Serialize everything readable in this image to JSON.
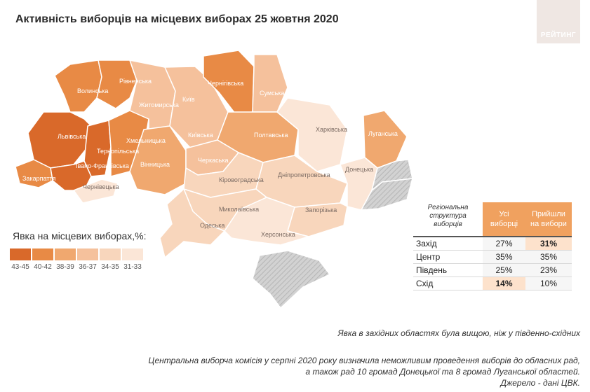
{
  "title": "Активність виборців на місцевих виборах 25 жовтня 2020",
  "logo_text": "РЕЙТИНГ",
  "colors": {
    "43-45": "#d9692a",
    "40-42": "#e88a45",
    "38-39": "#f0a86f",
    "36-37": "#f5c19c",
    "34-35": "#f8d6bc",
    "31-33": "#fbe6d7",
    "occupied": "#c8c8c8"
  },
  "regions": [
    {
      "name": "Волинська",
      "band": "40-42"
    },
    {
      "name": "Рівненська",
      "band": "40-42"
    },
    {
      "name": "Львівська",
      "band": "43-45"
    },
    {
      "name": "Тернопільська",
      "band": "43-45"
    },
    {
      "name": "Хмельницька",
      "band": "40-42"
    },
    {
      "name": "Івано-Франківська",
      "band": "43-45"
    },
    {
      "name": "Закарпаття",
      "band": "40-42"
    },
    {
      "name": "Чернівецька",
      "band": "31-33"
    },
    {
      "name": "Житомирська",
      "band": "36-37"
    },
    {
      "name": "Вінницька",
      "band": "38-39"
    },
    {
      "name": "Київ",
      "band": "36-37"
    },
    {
      "name": "Київська",
      "band": "36-37"
    },
    {
      "name": "Чернігівська",
      "band": "40-42"
    },
    {
      "name": "Сумська",
      "band": "36-37"
    },
    {
      "name": "Полтавська",
      "band": "38-39"
    },
    {
      "name": "Черкаська",
      "band": "36-37"
    },
    {
      "name": "Кіровоградська",
      "band": "34-35"
    },
    {
      "name": "Харківська",
      "band": "31-33"
    },
    {
      "name": "Луганська",
      "band": "38-39"
    },
    {
      "name": "Донецька",
      "band": "31-33"
    },
    {
      "name": "Дніпропетровська",
      "band": "34-35"
    },
    {
      "name": "Запорізька",
      "band": "34-35"
    },
    {
      "name": "Миколаївська",
      "band": "34-35"
    },
    {
      "name": "Одеська",
      "band": "34-35"
    },
    {
      "name": "Херсонська",
      "band": "31-33"
    }
  ],
  "legend": {
    "title": "Явка на місцевих виборах,%:",
    "items": [
      {
        "label": "43-45",
        "color": "#d9692a"
      },
      {
        "label": "40-42",
        "color": "#e88a45"
      },
      {
        "label": "38-39",
        "color": "#f0a86f"
      },
      {
        "label": "36-37",
        "color": "#f5c19c"
      },
      {
        "label": "34-35",
        "color": "#f8d6bc"
      },
      {
        "label": "31-33",
        "color": "#fbe6d7"
      }
    ]
  },
  "table": {
    "header": [
      "Регіональна структура виборців",
      "Усі виборці",
      "Прийшли на вибори"
    ],
    "rows": [
      {
        "region": "Захід",
        "all": "27%",
        "came": "31%",
        "hl_all": false,
        "hl_came": true
      },
      {
        "region": "Центр",
        "all": "35%",
        "came": "35%",
        "hl_all": false,
        "hl_came": false
      },
      {
        "region": "Південь",
        "all": "25%",
        "came": "23%",
        "hl_all": false,
        "hl_came": false
      },
      {
        "region": "Схід",
        "all": "14%",
        "came": "10%",
        "hl_all": true,
        "hl_came": false
      }
    ]
  },
  "notes": {
    "headline": "Явка в західних областях була вищою, ніж у південно-східних",
    "cec_line1": "Центральна виборча комісія у серпні 2020 року визначила неможливим проведення виборів до обласних рад,",
    "cec_line2": "а також рад 10 громад Донецької та 8 громад Луганської областей.",
    "source": "Джерело - дані ЦВК."
  }
}
